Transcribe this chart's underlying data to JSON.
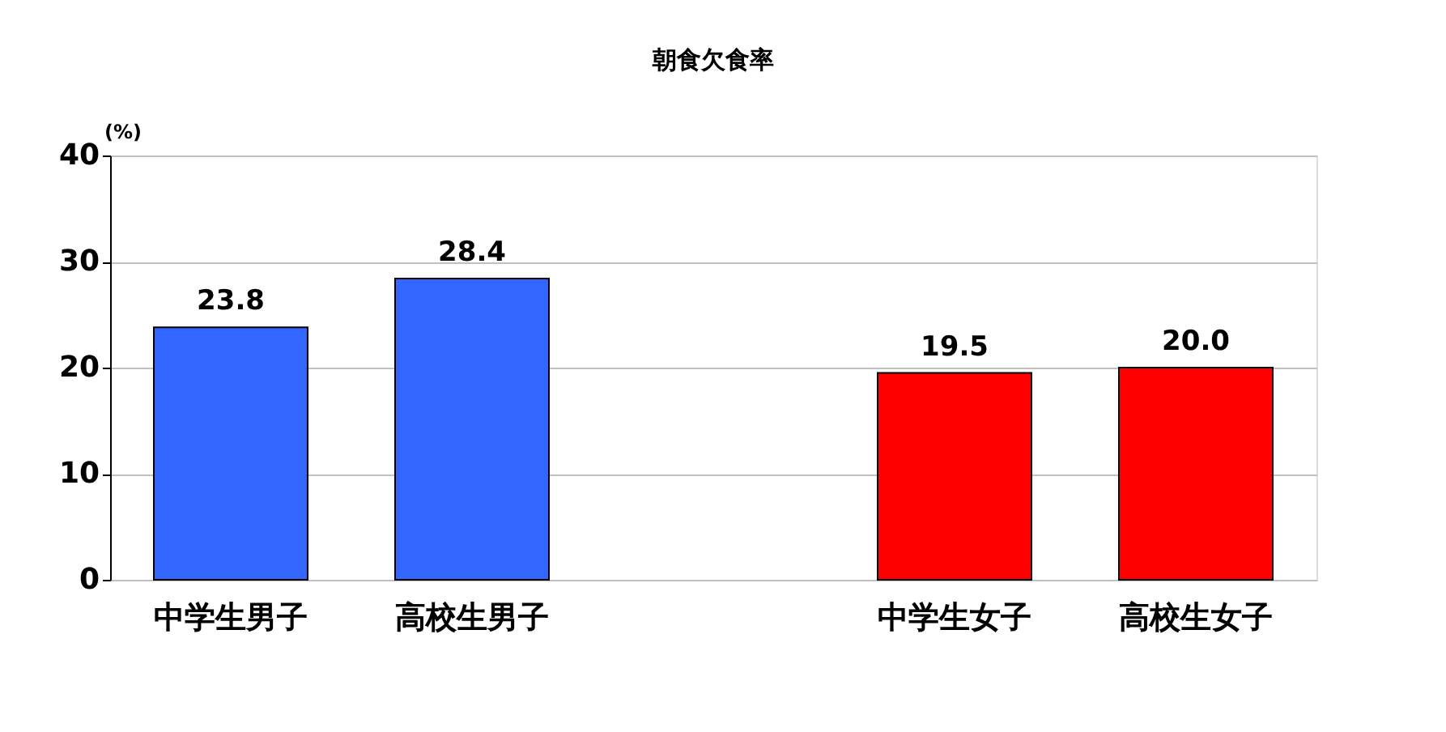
{
  "chart_data": {
    "type": "bar",
    "title": "朝食欠食率",
    "ylabel": "(%)",
    "categories": [
      "中学生男子",
      "高校生男子",
      null,
      "中学生女子",
      "高校生女子"
    ],
    "values": [
      23.8,
      28.4,
      null,
      19.5,
      20.0
    ],
    "colors": [
      "#3366ff",
      "#3366ff",
      null,
      "#ff0000",
      "#ff0000"
    ],
    "value_labels": [
      "23.8",
      "28.4",
      null,
      "19.5",
      "20.0"
    ],
    "ylim": [
      0,
      40
    ],
    "yticks": [
      0,
      10,
      20,
      30,
      40
    ],
    "grid": "y"
  }
}
